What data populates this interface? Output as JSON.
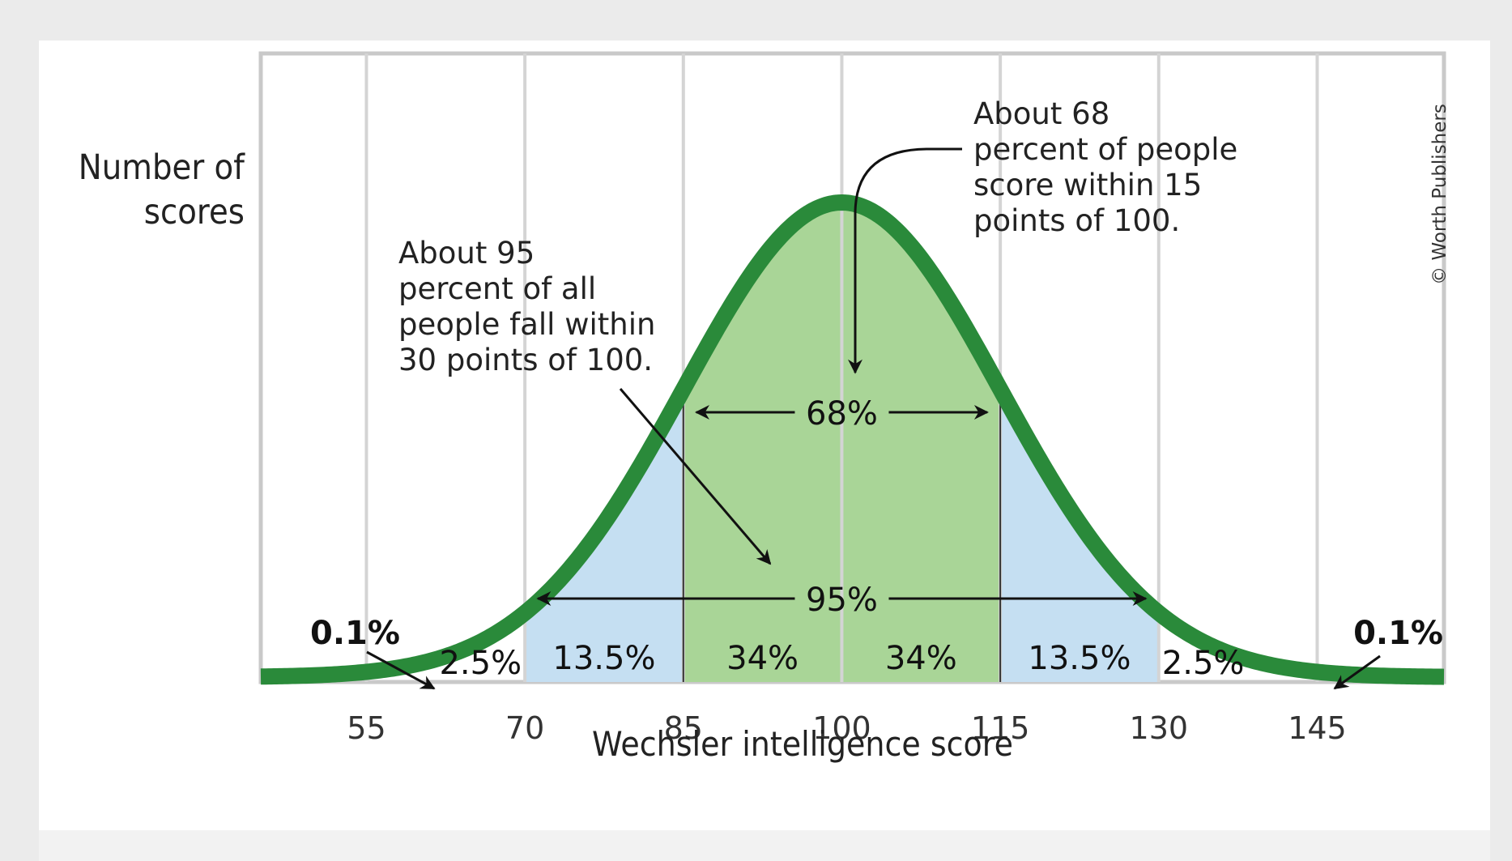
{
  "chart_data": {
    "type": "area",
    "distribution": "normal",
    "mean": 100,
    "sd": 15,
    "xlabel": "Wechsler intelligence score",
    "ylabel_lines": [
      "Number of",
      "scores"
    ],
    "x_ticks": [
      55,
      70,
      85,
      100,
      115,
      130,
      145
    ],
    "x_range": [
      45,
      157
    ],
    "grid": true,
    "regions": [
      {
        "from": 45,
        "to": 55,
        "label": "0.1%",
        "fill": "none"
      },
      {
        "from": 55,
        "to": 70,
        "label": "2.5%",
        "fill": "none"
      },
      {
        "from": 70,
        "to": 85,
        "label": "13.5%",
        "fill": "#c5dff2"
      },
      {
        "from": 85,
        "to": 100,
        "label": "34%",
        "fill": "#a9d597"
      },
      {
        "from": 100,
        "to": 115,
        "label": "34%",
        "fill": "#a9d597"
      },
      {
        "from": 115,
        "to": 130,
        "label": "13.5%",
        "fill": "#c5dff2"
      },
      {
        "from": 130,
        "to": 145,
        "label": "2.5%",
        "fill": "none"
      },
      {
        "from": 145,
        "to": 157,
        "label": "0.1%",
        "fill": "none"
      }
    ],
    "spans": [
      {
        "from": 85,
        "to": 115,
        "label": "68%"
      },
      {
        "from": 70,
        "to": 130,
        "label": "95%"
      }
    ],
    "annotations": [
      {
        "id": "ann68",
        "lines": [
          "About 68",
          "percent of people",
          "score within 15",
          "points of 100."
        ]
      },
      {
        "id": "ann95",
        "lines": [
          "About 95",
          "percent of all",
          "people fall within",
          "30 points of 100."
        ]
      }
    ],
    "curve_color": "#2a8a3a",
    "copyright": "© Worth Publishers"
  }
}
